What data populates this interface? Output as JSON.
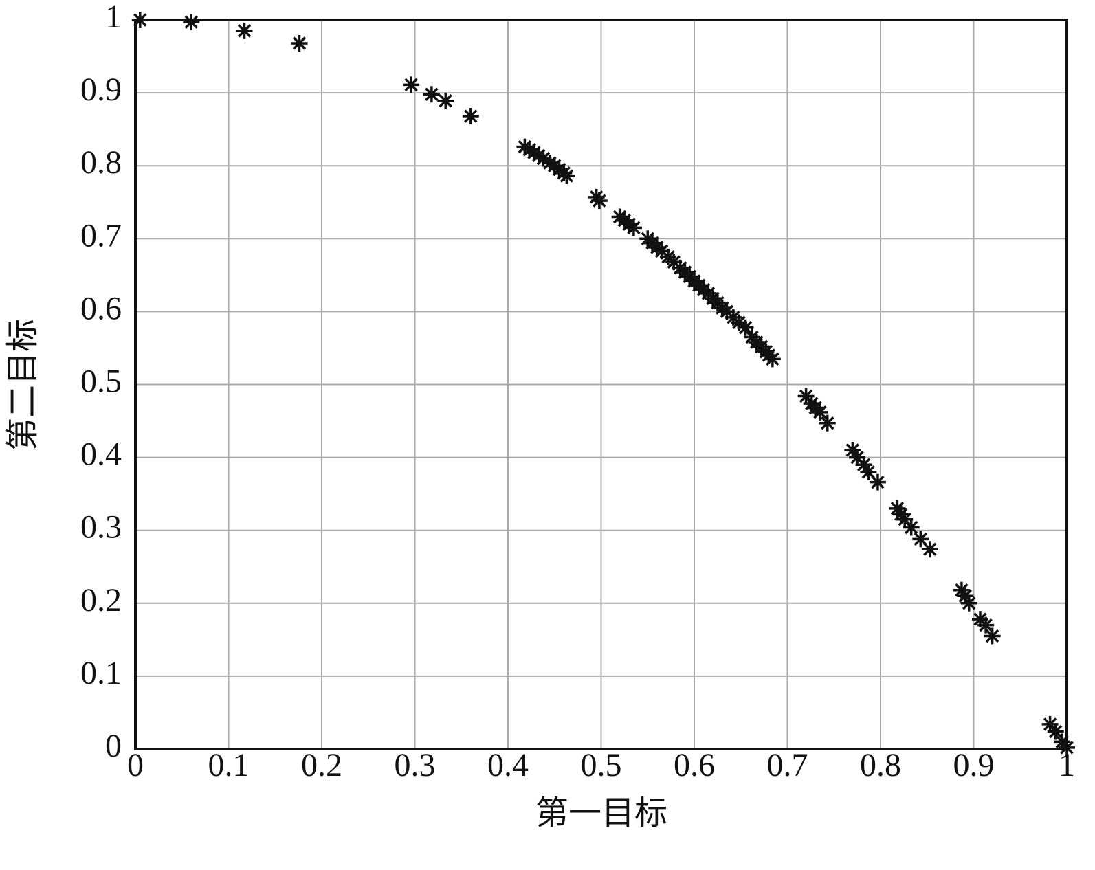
{
  "chart_data": {
    "type": "scatter",
    "xlabel": "第一目标",
    "ylabel": "第二目标",
    "xlim": [
      0,
      1
    ],
    "ylim": [
      0,
      1
    ],
    "xticks": [
      0,
      0.1,
      0.2,
      0.3,
      0.4,
      0.5,
      0.6,
      0.7,
      0.8,
      0.9,
      1
    ],
    "yticks": [
      0,
      0.1,
      0.2,
      0.3,
      0.4,
      0.5,
      0.6,
      0.7,
      0.8,
      0.9,
      1
    ],
    "grid": true,
    "color": "#111111",
    "marker": "asterisk",
    "x": [
      0.005,
      0.06,
      0.117,
      0.176,
      0.296,
      0.318,
      0.333,
      0.36,
      0.418,
      0.423,
      0.428,
      0.433,
      0.438,
      0.445,
      0.45,
      0.455,
      0.46,
      0.463,
      0.495,
      0.498,
      0.52,
      0.525,
      0.53,
      0.535,
      0.55,
      0.555,
      0.56,
      0.565,
      0.572,
      0.578,
      0.585,
      0.59,
      0.595,
      0.6,
      0.605,
      0.61,
      0.615,
      0.62,
      0.625,
      0.63,
      0.635,
      0.642,
      0.648,
      0.655,
      0.662,
      0.667,
      0.672,
      0.677,
      0.68,
      0.684,
      0.72,
      0.726,
      0.73,
      0.735,
      0.743,
      0.77,
      0.775,
      0.782,
      0.787,
      0.797,
      0.818,
      0.822,
      0.826,
      0.833,
      0.843,
      0.853,
      0.887,
      0.891,
      0.895,
      0.907,
      0.913,
      0.92,
      0.982,
      0.988,
      0.995,
      1.0
    ],
    "values": [
      1.0,
      0.997,
      0.985,
      0.968,
      0.911,
      0.898,
      0.889,
      0.868,
      0.826,
      0.822,
      0.818,
      0.814,
      0.81,
      0.804,
      0.8,
      0.795,
      0.79,
      0.786,
      0.757,
      0.752,
      0.73,
      0.725,
      0.72,
      0.715,
      0.7,
      0.694,
      0.688,
      0.683,
      0.675,
      0.668,
      0.66,
      0.654,
      0.648,
      0.642,
      0.636,
      0.63,
      0.625,
      0.618,
      0.612,
      0.605,
      0.6,
      0.592,
      0.585,
      0.578,
      0.565,
      0.558,
      0.552,
      0.545,
      0.54,
      0.535,
      0.484,
      0.474,
      0.468,
      0.462,
      0.447,
      0.41,
      0.4,
      0.39,
      0.38,
      0.366,
      0.33,
      0.322,
      0.315,
      0.304,
      0.288,
      0.274,
      0.218,
      0.21,
      0.2,
      0.178,
      0.17,
      0.155,
      0.034,
      0.024,
      0.01,
      0.002
    ]
  }
}
